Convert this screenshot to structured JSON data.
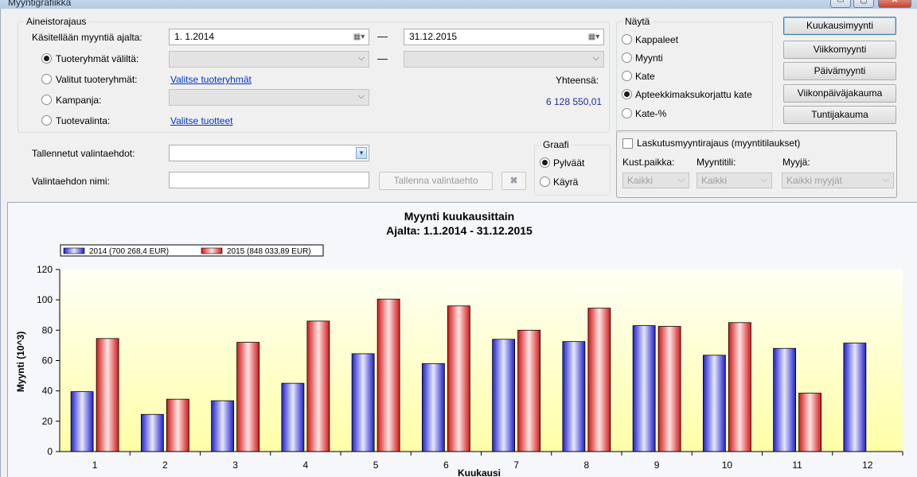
{
  "window": {
    "title": "Myyntigrafiikka",
    "minimize_label": "▭",
    "maximize_label": "▢",
    "close_label": "✕"
  },
  "filters": {
    "legend": "Aineistorajaus",
    "period_label": "Käsitellään myyntiä ajalta:",
    "date_from": "1.  1.2014",
    "date_to": "31.12.2015",
    "product_groups_between_label": "Tuoteryhmät väliltä:",
    "selected_groups_label": "Valitut tuoteryhmät:",
    "select_groups_link": "Valitse tuoteryhmät",
    "campaign_label": "Kampanja:",
    "product_selection_label": "Tuotevalinta:",
    "select_products_link": "Valitse tuotteet",
    "total_label": "Yhteensä:",
    "total_value": "6 128 550,01",
    "selected_option": "Tuoteryhmät väliltä:"
  },
  "saved": {
    "saved_criteria_label": "Tallennetut valintaehdot:",
    "criteria_name_label": "Valintaehdon nimi:",
    "save_button": "Tallenna valintaehto",
    "delete_icon": "x-icon"
  },
  "graph": {
    "legend": "Graafi",
    "options": [
      "Pylväät",
      "Käyrä"
    ],
    "selected": "Pylväät"
  },
  "show": {
    "legend": "Näytä",
    "options": [
      "Kappaleet",
      "Myynti",
      "Kate",
      "Apteekkimaksukorjattu kate",
      "Kate-%"
    ],
    "selected": "Apteekkimaksukorjattu kate"
  },
  "views": {
    "buttons": [
      "Kuukausimyynti",
      "Viikkomyynti",
      "Päivämyynti",
      "Viikonpäiväjakauma",
      "Tuntijakauma"
    ],
    "active": "Kuukausimyynti"
  },
  "billing": {
    "checkbox_label": "Laskutusmyyntirajaus (myyntitilaukset)",
    "checked": false,
    "cost_center_label": "Kust.paikka:",
    "cost_center_value": "Kaikki",
    "sales_account_label": "Myyntitili:",
    "sales_account_value": "Kaikki",
    "seller_label": "Myyjä:",
    "seller_value": "Kaikki myyjät"
  },
  "chart_data": {
    "type": "bar",
    "title": "Myynti kuukausittain",
    "subtitle": "Ajalta: 1.1.2014 - 31.12.2015",
    "xlabel": "Kuukausi",
    "ylabel": "Myynti (10^3)",
    "ylim": [
      0,
      120
    ],
    "yticks": [
      0,
      20,
      40,
      60,
      80,
      100,
      120
    ],
    "grid": false,
    "legend_position": "top-left",
    "categories": [
      "1",
      "2",
      "3",
      "4",
      "5",
      "6",
      "7",
      "8",
      "9",
      "10",
      "11",
      "12"
    ],
    "series": [
      {
        "name": "2014  (700 268,4  EUR)",
        "color": "#2b2bd6",
        "values": [
          39.5,
          24.5,
          33.5,
          45,
          64.5,
          58,
          74,
          72.5,
          83,
          63.5,
          68,
          71.5
        ]
      },
      {
        "name": "2015  (848 033,89  EUR)",
        "color": "#d62b2b",
        "values": [
          74.5,
          34.5,
          72,
          86,
          100.5,
          96,
          80,
          94.5,
          82.5,
          85,
          38.5,
          null
        ]
      }
    ]
  }
}
